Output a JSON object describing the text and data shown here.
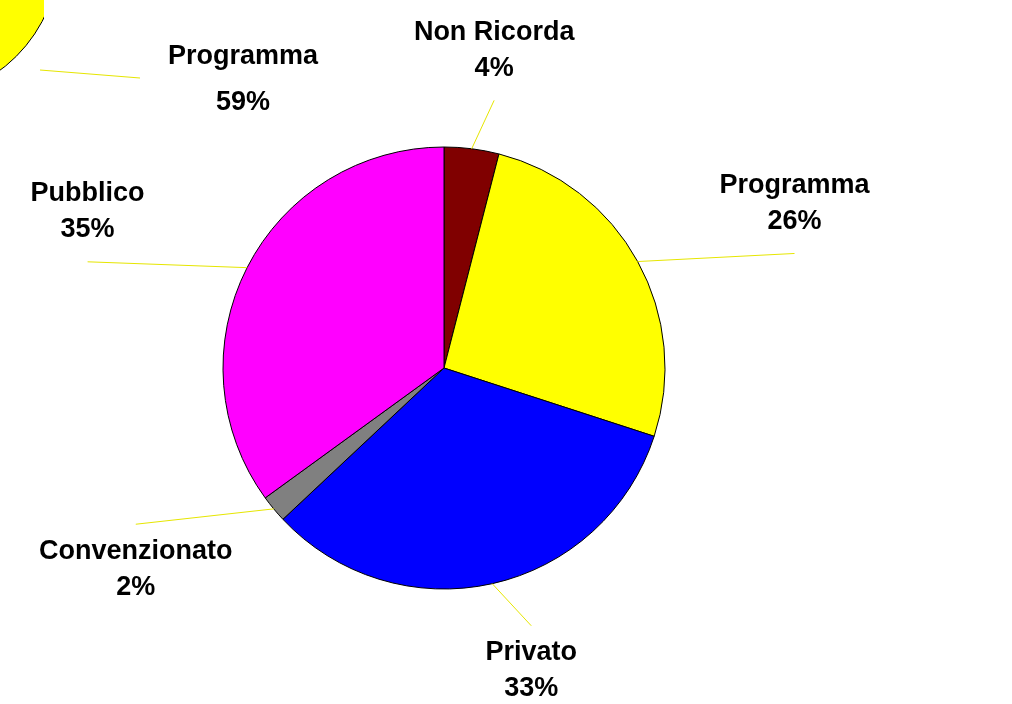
{
  "chart_data": {
    "type": "pie",
    "categories": [
      "Non Ricorda",
      "Programma",
      "Privato",
      "Convenzionato",
      "Pubblico"
    ],
    "values": [
      4,
      26,
      33,
      2,
      35
    ],
    "value_labels": [
      "4%",
      "26%",
      "33%",
      "2%",
      "35%"
    ],
    "colors": [
      "#800000",
      "#ffff00",
      "#0000ff",
      "#808080",
      "#ff00ff"
    ],
    "annotations": [
      "Programma",
      "59%"
    ],
    "legend": false
  }
}
